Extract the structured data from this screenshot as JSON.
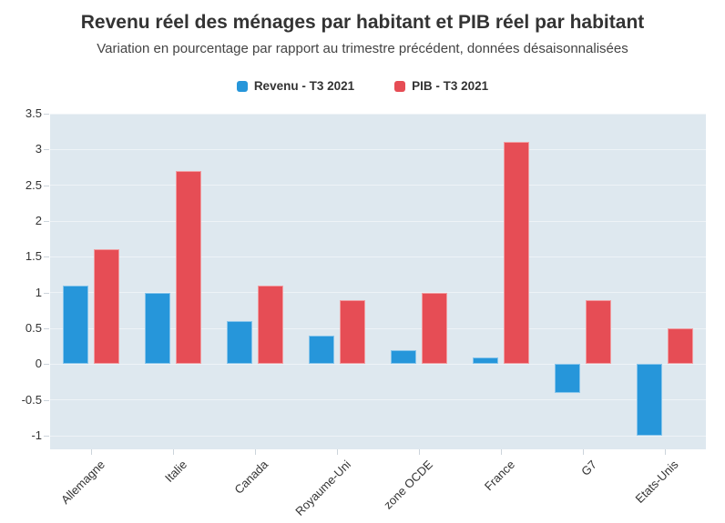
{
  "chart_data": {
    "type": "bar",
    "title": "Revenu réel des ménages par habitant et PIB réel par habitant",
    "subtitle": "Variation en pourcentage par rapport au trimestre précédent, données désaisonnalisées",
    "categories": [
      "Allemagne",
      "Italie",
      "Canada",
      "Royaume-Uni",
      "zone OCDE",
      "France",
      "G7",
      "Etats-Unis"
    ],
    "series": [
      {
        "name": "Revenu - T3 2021",
        "color": "#2696da",
        "values": [
          1.1,
          1.0,
          0.6,
          0.4,
          0.2,
          0.1,
          -0.4,
          -1.0
        ]
      },
      {
        "name": "PIB - T3 2021",
        "color": "#e64d55",
        "values": [
          1.6,
          2.7,
          1.1,
          0.9,
          1.0,
          3.1,
          0.9,
          0.5
        ]
      }
    ],
    "xlabel": "",
    "ylabel": "",
    "ylim": [
      -1.19,
      3.5
    ],
    "yticks": [
      -1,
      -0.5,
      0,
      0.5,
      1,
      1.5,
      2,
      2.5,
      3,
      3.5
    ],
    "grid": true,
    "legend_position": "top",
    "colors": {
      "plot_bg": "#dee8ef",
      "gridline": "#eef3f7",
      "tick": "#ccd4db",
      "axis_text": "#333333",
      "title_text": "#333333",
      "subtitle_text": "#444444"
    }
  }
}
